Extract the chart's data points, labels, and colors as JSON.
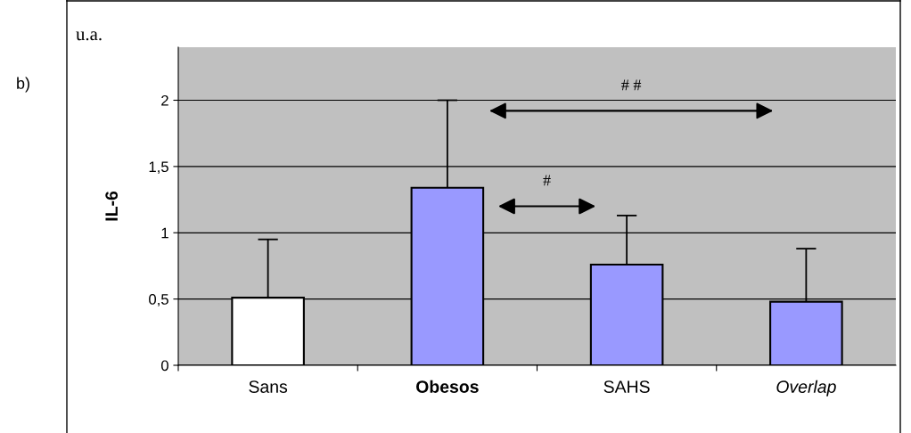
{
  "chart_data": {
    "type": "bar",
    "title": "b)",
    "subtitle": "u.a.",
    "ylabel": "IL-6",
    "categories": [
      "Sans",
      "Obesos",
      "SAHS",
      "Overlap"
    ],
    "values": [
      0.51,
      1.34,
      0.76,
      0.48
    ],
    "errors": [
      0.44,
      0.66,
      0.37,
      0.4
    ],
    "colors": [
      "#ffffff",
      "#9999ff",
      "#9999ff",
      "#9999ff"
    ],
    "ylim": [
      0,
      2.4
    ],
    "yticks": [
      0,
      {
        "value": 0.5,
        "label": "0,5"
      },
      1,
      {
        "value": 1.5,
        "label": "1,5"
      },
      2
    ],
    "grid": "y",
    "annotations": [
      "# #",
      "#"
    ]
  }
}
